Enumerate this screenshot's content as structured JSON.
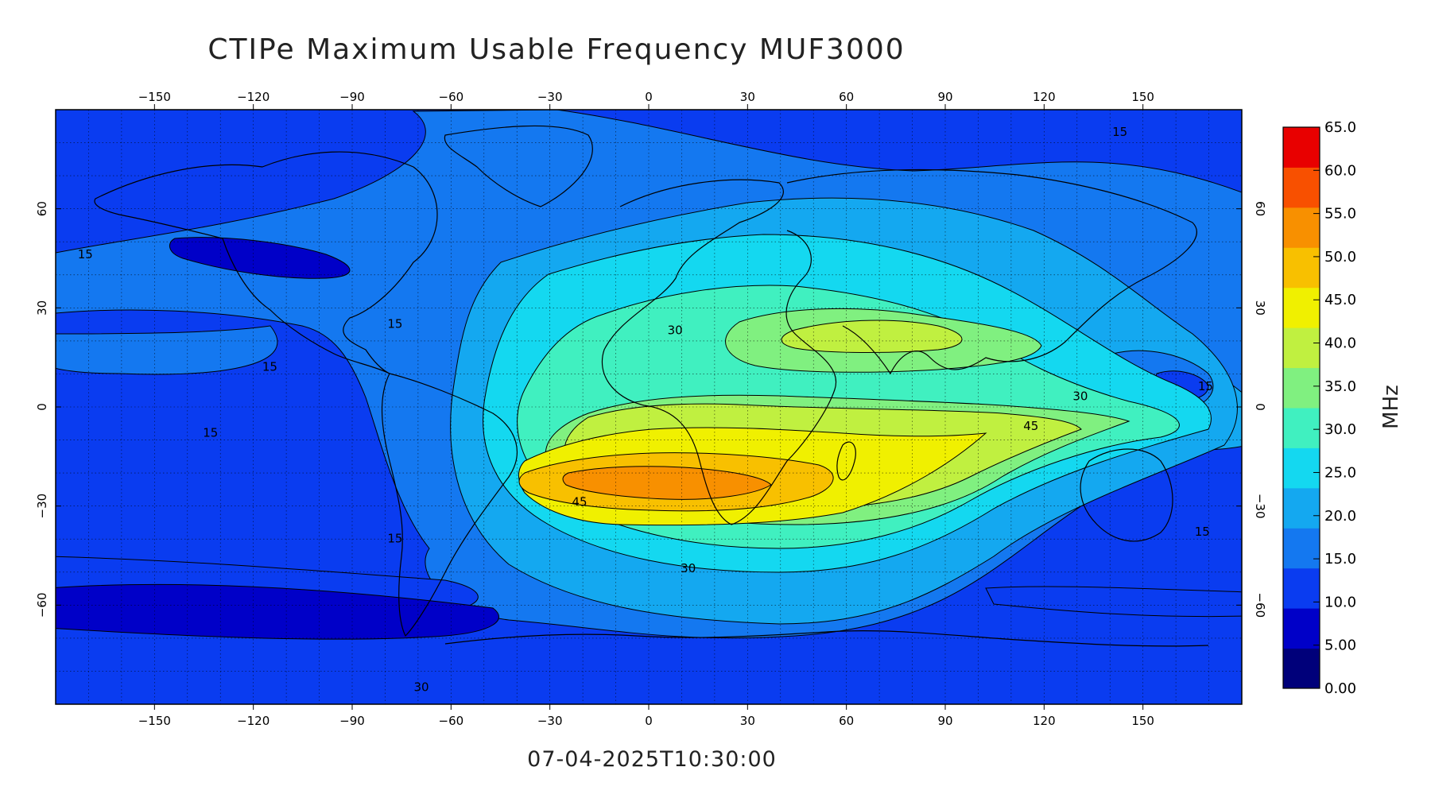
{
  "title": "CTIPe Maximum Usable Frequency MUF3000",
  "timestamp": "07-04-2025T10:30:00",
  "lon_ticks": [
    -150,
    -120,
    -90,
    -60,
    -30,
    0,
    30,
    60,
    90,
    120,
    150
  ],
  "lat_ticks": [
    60,
    30,
    0,
    -30,
    -60
  ],
  "lon_range": [
    -180,
    180
  ],
  "lat_range": [
    -90,
    90
  ],
  "colorbar": {
    "unit": "MHz",
    "ticks": [
      "0.00",
      "5.00",
      "10.0",
      "15.0",
      "20.0",
      "25.0",
      "30.0",
      "35.0",
      "40.0",
      "45.0",
      "50.0",
      "55.0",
      "60.0",
      "65.0"
    ],
    "range": [
      0,
      65
    ],
    "colors": [
      "#00007a",
      "#0000c8",
      "#0a3cf0",
      "#1478f0",
      "#14a8f0",
      "#14d8f0",
      "#40f0c0",
      "#80f080",
      "#c0f040",
      "#f0f000",
      "#f8c000",
      "#f89000",
      "#f85000",
      "#e80000"
    ]
  },
  "contour_labels": [
    {
      "text": "15",
      "lon": -171,
      "lat": 45
    },
    {
      "text": "15",
      "lon": -115,
      "lat": 11
    },
    {
      "text": "15",
      "lon": -133,
      "lat": -9
    },
    {
      "text": "15",
      "lon": -77,
      "lat": -41
    },
    {
      "text": "15",
      "lon": -77,
      "lat": 24
    },
    {
      "text": "30",
      "lon": 8,
      "lat": 22
    },
    {
      "text": "45",
      "lon": -21,
      "lat": -30
    },
    {
      "text": "30",
      "lon": 12,
      "lat": -50
    },
    {
      "text": "30",
      "lon": 131,
      "lat": 2
    },
    {
      "text": "45",
      "lon": 116,
      "lat": -7
    },
    {
      "text": "15",
      "lon": 143,
      "lat": 82
    },
    {
      "text": "15",
      "lon": 169,
      "lat": 5
    },
    {
      "text": "15",
      "lon": 168,
      "lat": -39
    },
    {
      "text": "30",
      "lon": -69,
      "lat": -86
    }
  ],
  "colors": {
    "background_field": "#0a3cf0",
    "contour_line": "#000000",
    "grid_line": "#000000"
  }
}
